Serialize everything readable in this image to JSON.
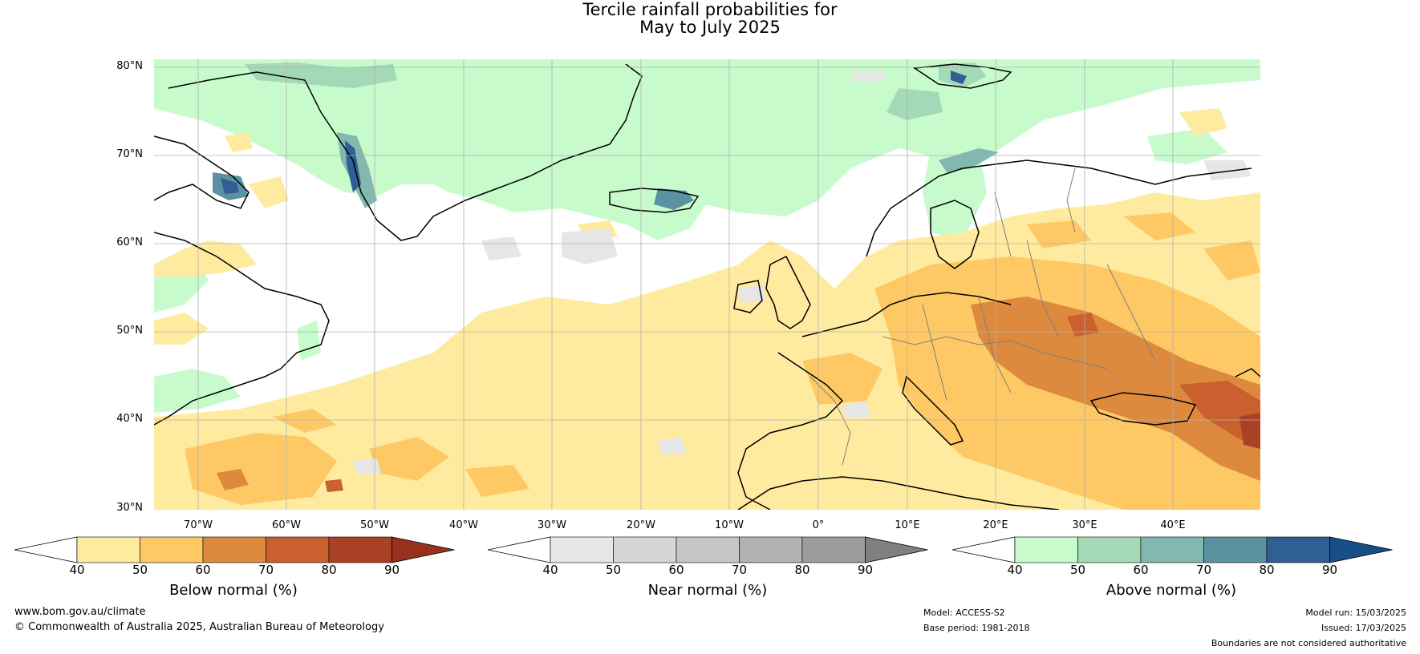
{
  "title_line1": "Tercile rainfall probabilities for",
  "title_line2": "May to July 2025",
  "lat_labels": [
    "80°N",
    "70°N",
    "60°N",
    "50°N",
    "40°N",
    "30°N"
  ],
  "lon_labels": [
    "70°W",
    "60°W",
    "50°W",
    "40°W",
    "30°W",
    "20°W",
    "10°W",
    "0°",
    "10°E",
    "20°E",
    "30°E",
    "40°E"
  ],
  "colorbars": [
    {
      "title": "Below normal (%)",
      "ticks": [
        "40",
        "50",
        "60",
        "70",
        "80",
        "90"
      ],
      "colors": [
        "#ffeba0",
        "#fec964",
        "#dd8a3f",
        "#c9602e",
        "#a94125"
      ],
      "low": "#ffffff",
      "high": "#97301d"
    },
    {
      "title": "Near normal (%)",
      "ticks": [
        "40",
        "50",
        "60",
        "70",
        "80",
        "90"
      ],
      "colors": [
        "#e6e6e6",
        "#d6d6d6",
        "#c6c6c6",
        "#b2b2b2",
        "#9c9c9c"
      ],
      "low": "#ffffff",
      "high": "#808080"
    },
    {
      "title": "Above normal (%)",
      "ticks": [
        "40",
        "50",
        "60",
        "70",
        "80",
        "90"
      ],
      "colors": [
        "#c8fbcc",
        "#a4d9b8",
        "#82b8ae",
        "#5b92a2",
        "#2f5f94"
      ],
      "low": "#ffffff",
      "high": "#174e85"
    }
  ],
  "footer": {
    "website": "www.bom.gov.au/climate",
    "copyright": "© Commonwealth of Australia 2025, Australian Bureau of Meteorology",
    "model": "Model: ACCESS-S2",
    "base_period": "Base period: 1981-2018",
    "model_run": "Model run: 15/03/2025",
    "issued": "Issued: 17/03/2025",
    "disclaimer": "Boundaries are not considered authoritative"
  }
}
